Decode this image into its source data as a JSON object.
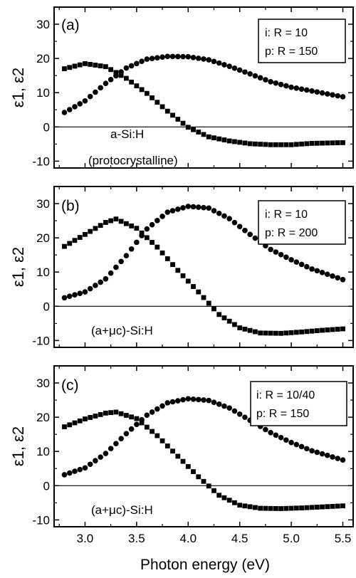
{
  "chart_data": [
    {
      "type": "scatter",
      "panel_label": "(a)",
      "ylabel": "ε1, ε2",
      "xlabel": "",
      "xlim": [
        2.7,
        5.6
      ],
      "ylim": [
        -12,
        35
      ],
      "x_ticks": [
        3.0,
        3.5,
        4.0,
        4.5,
        5.0,
        5.5
      ],
      "y_ticks": [
        -10,
        0,
        10,
        20,
        30
      ],
      "x_tick_labels_shown": false,
      "legend_lines": [
        "i:  R = 10",
        "p: R = 150"
      ],
      "annotations": [
        "a-Si:H",
        "(protocrystalline)"
      ],
      "series": [
        {
          "marker": "square",
          "x": [
            2.8,
            3.0,
            3.2,
            3.4,
            3.6,
            3.8,
            4.0,
            4.2,
            4.4,
            4.6,
            4.8,
            5.0,
            5.2,
            5.5
          ],
          "y": [
            17,
            18.5,
            17.6,
            14.2,
            9.8,
            4.6,
            -0.1,
            -2.9,
            -4.1,
            -4.9,
            -5.2,
            -5.2,
            -4.8,
            -4.6
          ]
        },
        {
          "marker": "circle",
          "x": [
            2.8,
            3.0,
            3.2,
            3.4,
            3.6,
            3.8,
            4.0,
            4.2,
            4.4,
            4.6,
            4.8,
            5.0,
            5.2,
            5.5
          ],
          "y": [
            4.2,
            7.6,
            12.7,
            17.2,
            19.8,
            20.6,
            20.5,
            19.6,
            17.7,
            15.5,
            13.2,
            11.6,
            10.5,
            8.8
          ]
        }
      ]
    },
    {
      "type": "scatter",
      "panel_label": "(b)",
      "ylabel": "ε1, ε2",
      "xlabel": "",
      "xlim": [
        2.7,
        5.6
      ],
      "ylim": [
        -12,
        35
      ],
      "x_ticks": [
        3.0,
        3.5,
        4.0,
        4.5,
        5.0,
        5.5
      ],
      "y_ticks": [
        -10,
        0,
        10,
        20,
        30
      ],
      "x_tick_labels_shown": false,
      "legend_lines": [
        "i:  R = 10",
        "p: R = 200"
      ],
      "annotations": [
        "(a+μc)-Si:H"
      ],
      "series": [
        {
          "marker": "square",
          "x": [
            2.8,
            3.0,
            3.2,
            3.3,
            3.5,
            3.7,
            3.9,
            4.1,
            4.3,
            4.5,
            4.7,
            4.9,
            5.1,
            5.3,
            5.5
          ],
          "y": [
            17.5,
            21,
            24.5,
            25.5,
            22.8,
            17.3,
            10.5,
            4.2,
            -2.4,
            -6.3,
            -7.8,
            -7.9,
            -7.5,
            -7,
            -6.6
          ]
        },
        {
          "marker": "circle",
          "x": [
            2.8,
            3.0,
            3.2,
            3.4,
            3.6,
            3.8,
            4.0,
            4.2,
            4.4,
            4.6,
            4.8,
            5.0,
            5.2,
            5.5
          ],
          "y": [
            2.5,
            4.2,
            8,
            14.8,
            22.6,
            27.5,
            29.2,
            28.7,
            25.6,
            21,
            16.6,
            13.6,
            10.9,
            7.8
          ]
        }
      ]
    },
    {
      "type": "scatter",
      "panel_label": "(c)",
      "ylabel": "ε1, ε2",
      "xlabel": "Photon energy (eV)",
      "xlim": [
        2.7,
        5.6
      ],
      "ylim": [
        -12,
        35
      ],
      "x_ticks": [
        3.0,
        3.5,
        4.0,
        4.5,
        5.0,
        5.5
      ],
      "y_ticks": [
        -10,
        0,
        10,
        20,
        30
      ],
      "x_tick_labels_shown": true,
      "legend_lines": [
        "i:  R = 10/40",
        "p: R = 150"
      ],
      "annotations": [
        "(a+μc)-Si:H"
      ],
      "series": [
        {
          "marker": "square",
          "x": [
            2.8,
            3.0,
            3.2,
            3.3,
            3.5,
            3.7,
            3.9,
            4.1,
            4.3,
            4.5,
            4.7,
            4.9,
            5.1,
            5.3,
            5.5
          ],
          "y": [
            17.2,
            19.5,
            21.2,
            21.5,
            19.6,
            14.6,
            8.6,
            2.6,
            -2.8,
            -5.7,
            -6.6,
            -6.7,
            -6.5,
            -6.2,
            -5.9
          ]
        },
        {
          "marker": "circle",
          "x": [
            2.8,
            3.0,
            3.2,
            3.4,
            3.6,
            3.8,
            4.0,
            4.2,
            4.4,
            4.6,
            4.8,
            5.0,
            5.2,
            5.5
          ],
          "y": [
            3.2,
            5.2,
            9.4,
            15.2,
            20.6,
            24.2,
            25.4,
            24.9,
            22.7,
            19.1,
            15.5,
            12.6,
            10.2,
            7.5
          ]
        }
      ]
    }
  ]
}
